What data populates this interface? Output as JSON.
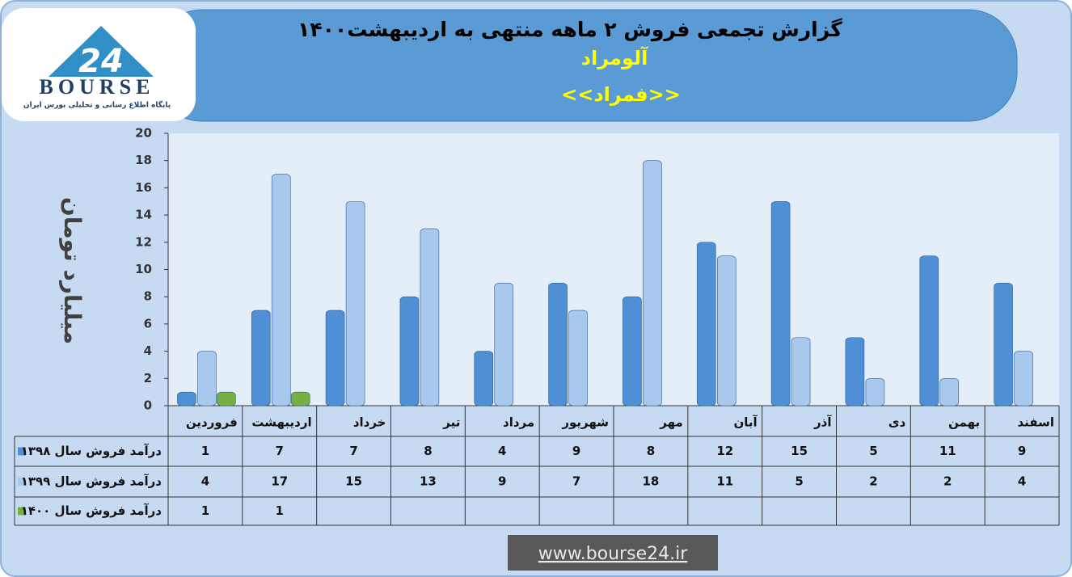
{
  "chart_data": {
    "type": "bar",
    "title": "گزارش تجمعی فروش ۲ ماهه منتهی به اردیبهشت۱۴۰۰",
    "subtitle": "آلومراد",
    "symbol": "<<فمراد>>",
    "y_label": "میلیارد تومان",
    "categories": [
      "فروردین",
      "اردیبهشت",
      "خرداد",
      "تیر",
      "مرداد",
      "شهریور",
      "مهر",
      "آبان",
      "آذر",
      "دی",
      "بهمن",
      "اسفند"
    ],
    "series": [
      {
        "name": "درآمد فروش سال ۱۳۹۸",
        "color": "#4f8fd6",
        "values": [
          1,
          7,
          7,
          8,
          4,
          9,
          8,
          12,
          15,
          5,
          11,
          9
        ]
      },
      {
        "name": "درآمد فروش سال ۱۳۹۹",
        "color": "#a9c8ee",
        "values": [
          4,
          17,
          15,
          13,
          9,
          7,
          18,
          11,
          5,
          2,
          2,
          4
        ]
      },
      {
        "name": "درآمد فروش سال ۱۴۰۰",
        "color": "#76b041",
        "values": [
          1,
          1,
          null,
          null,
          null,
          null,
          null,
          null,
          null,
          null,
          null,
          null
        ]
      }
    ],
    "ylim": [
      0,
      20
    ],
    "yticks": [
      0,
      2,
      4,
      6,
      8,
      10,
      12,
      14,
      16,
      18,
      20
    ],
    "grid": false
  },
  "logo": {
    "brand": "BOURSE",
    "number": "24",
    "tagline": "پایگاه اطلاع رسانی و تحلیلی بورس ایران"
  },
  "footer": {
    "url": "www.bourse24.ir"
  }
}
